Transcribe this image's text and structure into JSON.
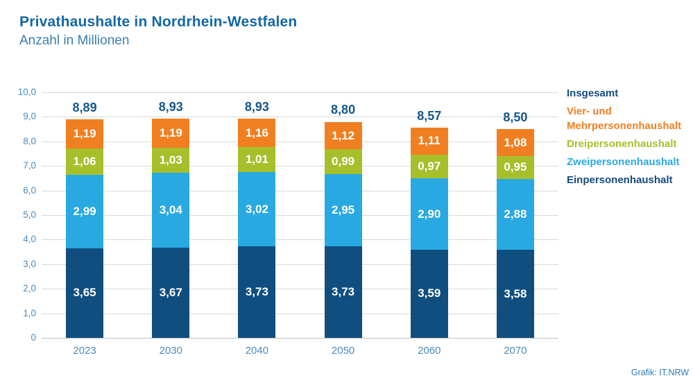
{
  "header": {
    "title": "Privathaushalte in Nordrhein-Westfalen",
    "subtitle": "Anzahl in Millionen"
  },
  "footer": {
    "credit": "Grafik: IT.NRW"
  },
  "colors": {
    "einpersonen": "#0f4e7f",
    "zweipersonen": "#29a9e1",
    "dreipersonen": "#a6bf2b",
    "vier_mehr": "#f07f21",
    "total_text": "#15568c",
    "axis_text": "#4a8bbd",
    "gridline": "#d9d9d9"
  },
  "chart_data": {
    "type": "bar",
    "stacked": true,
    "title": "Privathaushalte in Nordrhein-Westfalen",
    "ylabel": "Anzahl in Millionen",
    "xlabel": "",
    "grid": true,
    "legend_position": "right",
    "categories": [
      "2023",
      "2030",
      "2040",
      "2050",
      "2060",
      "2070"
    ],
    "series": [
      {
        "name": "Einpersonenhaushalt",
        "color": "#0f4e7f",
        "values": [
          3.65,
          3.67,
          3.73,
          3.73,
          3.59,
          3.58
        ],
        "labels": [
          "3,65",
          "3,67",
          "3,73",
          "3,73",
          "3,59",
          "3,58"
        ]
      },
      {
        "name": "Zweipersonenhaushalt",
        "color": "#29a9e1",
        "values": [
          2.99,
          3.04,
          3.02,
          2.95,
          2.9,
          2.88
        ],
        "labels": [
          "2,99",
          "3,04",
          "3,02",
          "2,95",
          "2,90",
          "2,88"
        ]
      },
      {
        "name": "Dreipersonenhaushalt",
        "color": "#a6bf2b",
        "values": [
          1.06,
          1.03,
          1.01,
          0.99,
          0.97,
          0.95
        ],
        "labels": [
          "1,06",
          "1,03",
          "1,01",
          "0,99",
          "0,97",
          "0,95"
        ]
      },
      {
        "name": "Vier- und Mehrpersonenhaushalt",
        "color": "#f07f21",
        "values": [
          1.19,
          1.19,
          1.16,
          1.12,
          1.11,
          1.08
        ],
        "labels": [
          "1,19",
          "1,19",
          "1,16",
          "1,12",
          "1,11",
          "1,08"
        ]
      }
    ],
    "totals": {
      "name": "Insgesamt",
      "values": [
        8.89,
        8.93,
        8.93,
        8.8,
        8.57,
        8.5
      ],
      "labels": [
        "8,89",
        "8,93",
        "8,93",
        "8,80",
        "8,57",
        "8,50"
      ]
    },
    "ylim": [
      0,
      10
    ],
    "ytick_step": 1,
    "ytick_labels": [
      "0",
      "1,0",
      "2,0",
      "3,0",
      "4,0",
      "5,0",
      "6,0",
      "7,0",
      "8,0",
      "9,0",
      "10,0"
    ],
    "legend": [
      {
        "label": "Insgesamt",
        "color": "#134b7d"
      },
      {
        "label": "Vier- und Mehrpersonenhaushalt",
        "color": "#f07f21"
      },
      {
        "label": "Dreipersonenhaushalt",
        "color": "#a6bf2b"
      },
      {
        "label": "Zweipersonenhaushalt",
        "color": "#29a9e1"
      },
      {
        "label": "Einpersonenhaushalt",
        "color": "#134b7d"
      }
    ]
  }
}
